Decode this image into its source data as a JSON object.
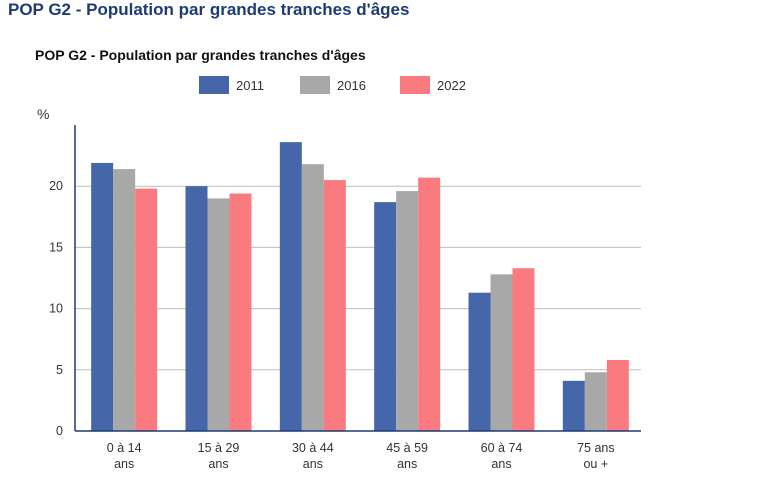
{
  "page": {
    "heading": "POP G2 - Population par grandes tranches d'âges"
  },
  "chart_data": {
    "type": "bar",
    "title": "POP G2 - Population par grandes tranches d'âges",
    "ylabel": "%",
    "ylim": [
      0,
      25
    ],
    "yticks": [
      0,
      5,
      10,
      15,
      20
    ],
    "grid": true,
    "legend_position": "top",
    "categories": [
      [
        "0 à 14",
        "ans"
      ],
      [
        "15 à 29",
        "ans"
      ],
      [
        "30 à 44",
        "ans"
      ],
      [
        "45 à 59",
        "ans"
      ],
      [
        "60 à 74",
        "ans"
      ],
      [
        "75 ans",
        "ou +"
      ]
    ],
    "series": [
      {
        "name": "2011",
        "color": "#4566a8",
        "values": [
          21.9,
          20.0,
          23.6,
          18.7,
          11.3,
          4.1
        ]
      },
      {
        "name": "2016",
        "color": "#a8a8a8",
        "values": [
          21.4,
          19.0,
          21.8,
          19.6,
          12.8,
          4.8
        ]
      },
      {
        "name": "2022",
        "color": "#f97b7f",
        "values": [
          19.8,
          19.4,
          20.5,
          20.7,
          13.3,
          5.8
        ]
      }
    ]
  }
}
